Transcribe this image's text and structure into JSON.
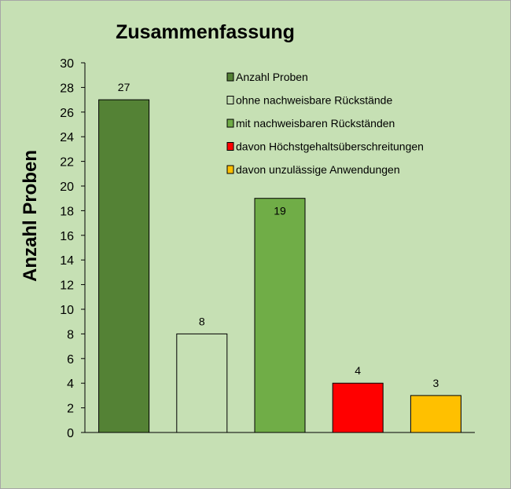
{
  "chart_data": {
    "type": "bar",
    "title": "Zusammenfassung",
    "ylabel": "Anzahl Proben",
    "xlabel": "",
    "ylim": [
      0,
      30
    ],
    "yticks": [
      0,
      2,
      4,
      6,
      8,
      10,
      12,
      14,
      16,
      18,
      20,
      22,
      24,
      26,
      28,
      30
    ],
    "grid": false,
    "legend_position": "top-right",
    "categories": [
      "Anzahl Proben",
      "ohne nachweisbare Rückstände",
      "mit nachweisbaren Rückständen",
      "davon Höchstgehaltsüberschreitungen",
      "davon unzulässige Anwendungen"
    ],
    "values": [
      27,
      8,
      19,
      4,
      3
    ],
    "colors": [
      "#548235",
      "#c6e0b4",
      "#70ad47",
      "#ff0000",
      "#ffc000"
    ]
  }
}
